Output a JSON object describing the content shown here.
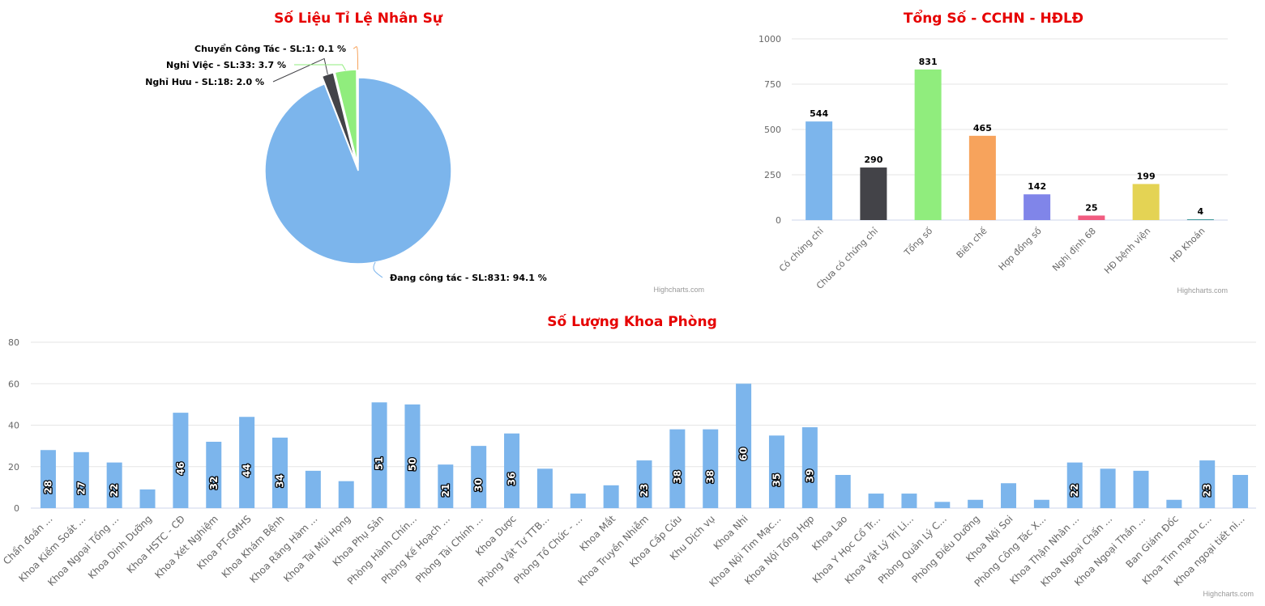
{
  "credits": "Highcharts.com",
  "chart_data": [
    {
      "id": "pie",
      "type": "pie",
      "title": "Số Liệu Tỉ Lệ Nhân Sự",
      "slices": [
        {
          "label": "Đang công tác - SL:831: 94.1 %",
          "value": 831,
          "percent": 94.1,
          "color": "#7cb5ec"
        },
        {
          "label": "Nghỉ Hưu - SL:18: 2.0 %",
          "value": 18,
          "percent": 2.0,
          "color": "#434348"
        },
        {
          "label": "Nghỉ Việc - SL:33: 3.7 %",
          "value": 33,
          "percent": 3.7,
          "color": "#90ed7d"
        },
        {
          "label": "Chuyển Công Tác - SL:1: 0.1 %",
          "value": 1,
          "percent": 0.1,
          "color": "#f7a35c"
        }
      ]
    },
    {
      "id": "bar1",
      "type": "bar",
      "title": "Tổng Số - CCHN - HĐLĐ",
      "categories": [
        "Có chứng chỉ",
        "Chưa có chứng chỉ",
        "Tổng số",
        "Biên chế",
        "Hợp đồng số",
        "Nghị định 68",
        "HĐ bệnh viện",
        "HĐ Khoán"
      ],
      "values": [
        544,
        290,
        831,
        465,
        142,
        25,
        199,
        4
      ],
      "colors": [
        "#7cb5ec",
        "#434348",
        "#90ed7d",
        "#f7a35c",
        "#8085e9",
        "#f15c80",
        "#e4d354",
        "#2b908f"
      ],
      "ylim": [
        0,
        1000
      ],
      "yticks": [
        0,
        250,
        500,
        750,
        1000
      ],
      "grid": true
    },
    {
      "id": "bar2",
      "type": "bar",
      "title": "Số Lượng Khoa Phòng",
      "categories": [
        "Chẩn đoán ...",
        "Khoa Kiểm Soát ...",
        "Khoa Ngoại Tổng ...",
        "Khoa Dinh Dưỡng",
        "Khoa HSTC - CĐ",
        "Khoa Xét Nghiệm",
        "Khoa PT-GMHS",
        "Khoa Khám Bệnh",
        "Khoa Răng Hàm ...",
        "Khoa Tai Mũi Họng",
        "Khoa Phụ Sản",
        "Phòng Hành Chín...",
        "Phòng Kế Hoạch ...",
        "Phòng Tài Chính ...",
        "Khoa Dược",
        "Phòng Vật Tư TTB...",
        "Phòng Tổ Chức - ...",
        "Khoa Mắt",
        "Khoa Truyền Nhiễm",
        "Khoa Cấp Cứu",
        "Khu Dịch vụ",
        "Khoa Nhi",
        "Khoa Nội Tim Mạc...",
        "Khoa Nội Tổng Hợp",
        "Khoa Lao",
        "Khoa Y Học Cổ Tr...",
        "Khoa Vật Lý Trị Li...",
        "Phòng Quản Lý C...",
        "Phòng Điều Dưỡng",
        "Khoa Nội Soi",
        "Phòng Công Tác X...",
        "Khoa Thận Nhân ...",
        "Khoa Ngoại Chấn ...",
        "Khoa Ngoại Thần ...",
        "Ban Giám Đốc",
        "Khoa Tim mạch c...",
        "Khoa ngoại tiết ni..."
      ],
      "values": [
        28,
        27,
        22,
        9,
        46,
        32,
        44,
        34,
        18,
        13,
        51,
        50,
        21,
        30,
        36,
        19,
        7,
        11,
        23,
        38,
        38,
        60,
        35,
        39,
        16,
        7,
        7,
        3,
        4,
        12,
        4,
        22,
        19,
        18,
        4,
        23,
        16
      ],
      "labeled": [
        true,
        true,
        true,
        false,
        true,
        true,
        true,
        true,
        false,
        false,
        true,
        true,
        true,
        true,
        true,
        false,
        false,
        false,
        true,
        true,
        true,
        true,
        true,
        true,
        false,
        false,
        false,
        false,
        false,
        false,
        false,
        true,
        false,
        false,
        false,
        true,
        false
      ],
      "color": "#7cb5ec",
      "ylim": [
        0,
        80
      ],
      "yticks": [
        0,
        20,
        40,
        60,
        80
      ],
      "grid": true
    }
  ]
}
